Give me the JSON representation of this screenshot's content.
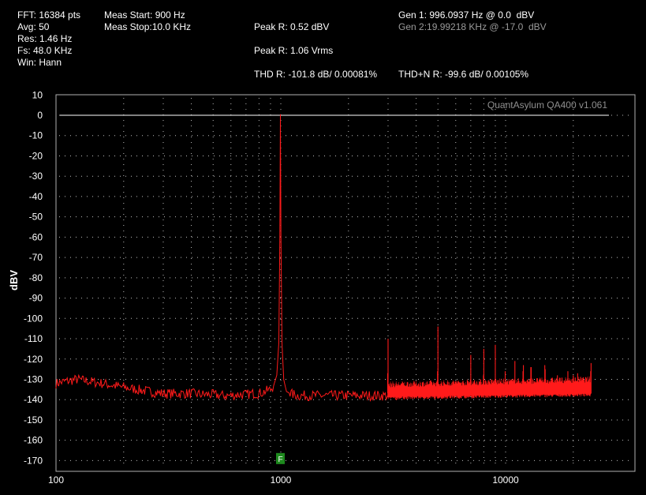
{
  "header": {
    "fft": "FFT: 16384 pts",
    "avg": "Avg: 50",
    "res": "Res: 1.46 Hz",
    "fs": "Fs: 48.0 KHz",
    "win": "Win: Hann",
    "meas_start": "Meas Start: 900 Hz",
    "meas_stop": "Meas Stop:10.0 KHz",
    "peak_dbv": "Peak R: 0.52 dBV",
    "peak_vrms": "Peak R: 1.06 Vrms",
    "thd": "THD R: -101.8 dB/ 0.00081%",
    "thdn": "THD+N R: -99.6 dB/ 0.00105%",
    "gen1": "Gen 1: 996.0937 Hz @ 0.0  dBV",
    "gen2": "Gen 2:19.99218 KHz @ -17.0  dBV"
  },
  "colors": {
    "trace": "#ff1a1a",
    "grid": "#bdbdbd",
    "frame": "#b0b0b0",
    "marker": "#1e8a1e",
    "dim_text": "#9a9a9a"
  },
  "chart_data": {
    "type": "line",
    "title": "",
    "watermark": "QuantAsylum QA400 v1.061",
    "ylabel": "dBV",
    "xlabel": "",
    "x_scale": "log",
    "xlim": [
      100,
      30000
    ],
    "ylim": [
      -175,
      10
    ],
    "grid": true,
    "y_ticks": [
      10,
      0,
      -10,
      -20,
      -30,
      -40,
      -50,
      -60,
      -70,
      -80,
      -90,
      -100,
      -110,
      -120,
      -130,
      -140,
      -150,
      -160,
      -170
    ],
    "y_tick_labels": [
      "10",
      "0",
      "-10",
      "-20",
      "-30",
      "-40",
      "-50",
      "-60",
      "-70",
      "-80",
      "-90",
      "-100",
      "-110",
      "-120",
      "-130",
      "-140",
      "-150",
      "-160",
      "-170"
    ],
    "x_ticks": [
      100,
      1000,
      10000
    ],
    "x_tick_labels": [
      "100",
      "1000",
      "10000"
    ],
    "reference_line_dbv": 0,
    "marker": {
      "label": "F",
      "freq": 996,
      "level": -169
    },
    "series": [
      {
        "x": [
          100,
          110,
          125,
          140,
          160,
          180,
          200,
          230,
          260,
          300,
          350,
          400,
          450,
          500,
          550,
          600,
          650,
          700,
          750,
          800,
          850,
          900,
          930,
          960,
          980,
          990,
          996,
          1002,
          1012,
          1030,
          1060,
          1100,
          1200,
          1400,
          1700,
          2000,
          2500,
          3000,
          3500,
          4000,
          5000,
          6000,
          7000,
          8000,
          9000,
          10000,
          12000,
          14000,
          16000,
          18000,
          20000,
          22000,
          24000
        ],
        "y": [
          -132,
          -131,
          -130,
          -131,
          -132,
          -133,
          -134,
          -135,
          -136,
          -137,
          -137,
          -137,
          -137.5,
          -137.5,
          -138,
          -138,
          -137.5,
          -137.5,
          -137,
          -137,
          -136,
          -135,
          -133,
          -128,
          -112,
          -60,
          0.5,
          -60,
          -112,
          -130,
          -136,
          -137,
          -138,
          -138,
          -138,
          -138,
          -138,
          -138,
          -137.5,
          -137.5,
          -137,
          -137,
          -136.5,
          -136.5,
          -136.5,
          -136,
          -136,
          -136,
          -136,
          -136,
          -136,
          -135.5,
          -135.5
        ]
      }
    ],
    "harmonics": [
      {
        "x": 1992,
        "y": -137
      },
      {
        "x": 2988,
        "y": -127
      },
      {
        "x": 3984,
        "y": -132
      },
      {
        "x": 4980,
        "y": -126
      },
      {
        "x": 5976,
        "y": -131
      },
      {
        "x": 6972,
        "y": -130
      },
      {
        "x": 7968,
        "y": -128
      },
      {
        "x": 8964,
        "y": -130
      },
      {
        "x": 9960,
        "y": -126
      },
      {
        "x": 10956,
        "y": -130
      },
      {
        "x": 11952,
        "y": -126
      },
      {
        "x": 12948,
        "y": -124
      },
      {
        "x": 13944,
        "y": -131
      },
      {
        "x": 14940,
        "y": -123
      },
      {
        "x": 16932,
        "y": -130
      },
      {
        "x": 18924,
        "y": -126
      },
      {
        "x": 20916,
        "y": -127
      },
      {
        "x": 23904,
        "y": -126
      }
    ],
    "spurs": [
      {
        "x": 3000,
        "y": -110
      },
      {
        "x": 5000,
        "y": -104
      },
      {
        "x": 7000,
        "y": -118
      },
      {
        "x": 8000,
        "y": -115
      },
      {
        "x": 9000,
        "y": -113
      },
      {
        "x": 11000,
        "y": -121
      },
      {
        "x": 12000,
        "y": -123
      },
      {
        "x": 13000,
        "y": -124
      },
      {
        "x": 15000,
        "y": -125
      },
      {
        "x": 17000,
        "y": -128
      },
      {
        "x": 20000,
        "y": -128
      },
      {
        "x": 24000,
        "y": -122
      }
    ],
    "noise_dense_from": 3000,
    "noise_dense_to": 24000,
    "noise_dense_floor": -137,
    "noise_dense_band": [
      -140,
      -132
    ]
  }
}
